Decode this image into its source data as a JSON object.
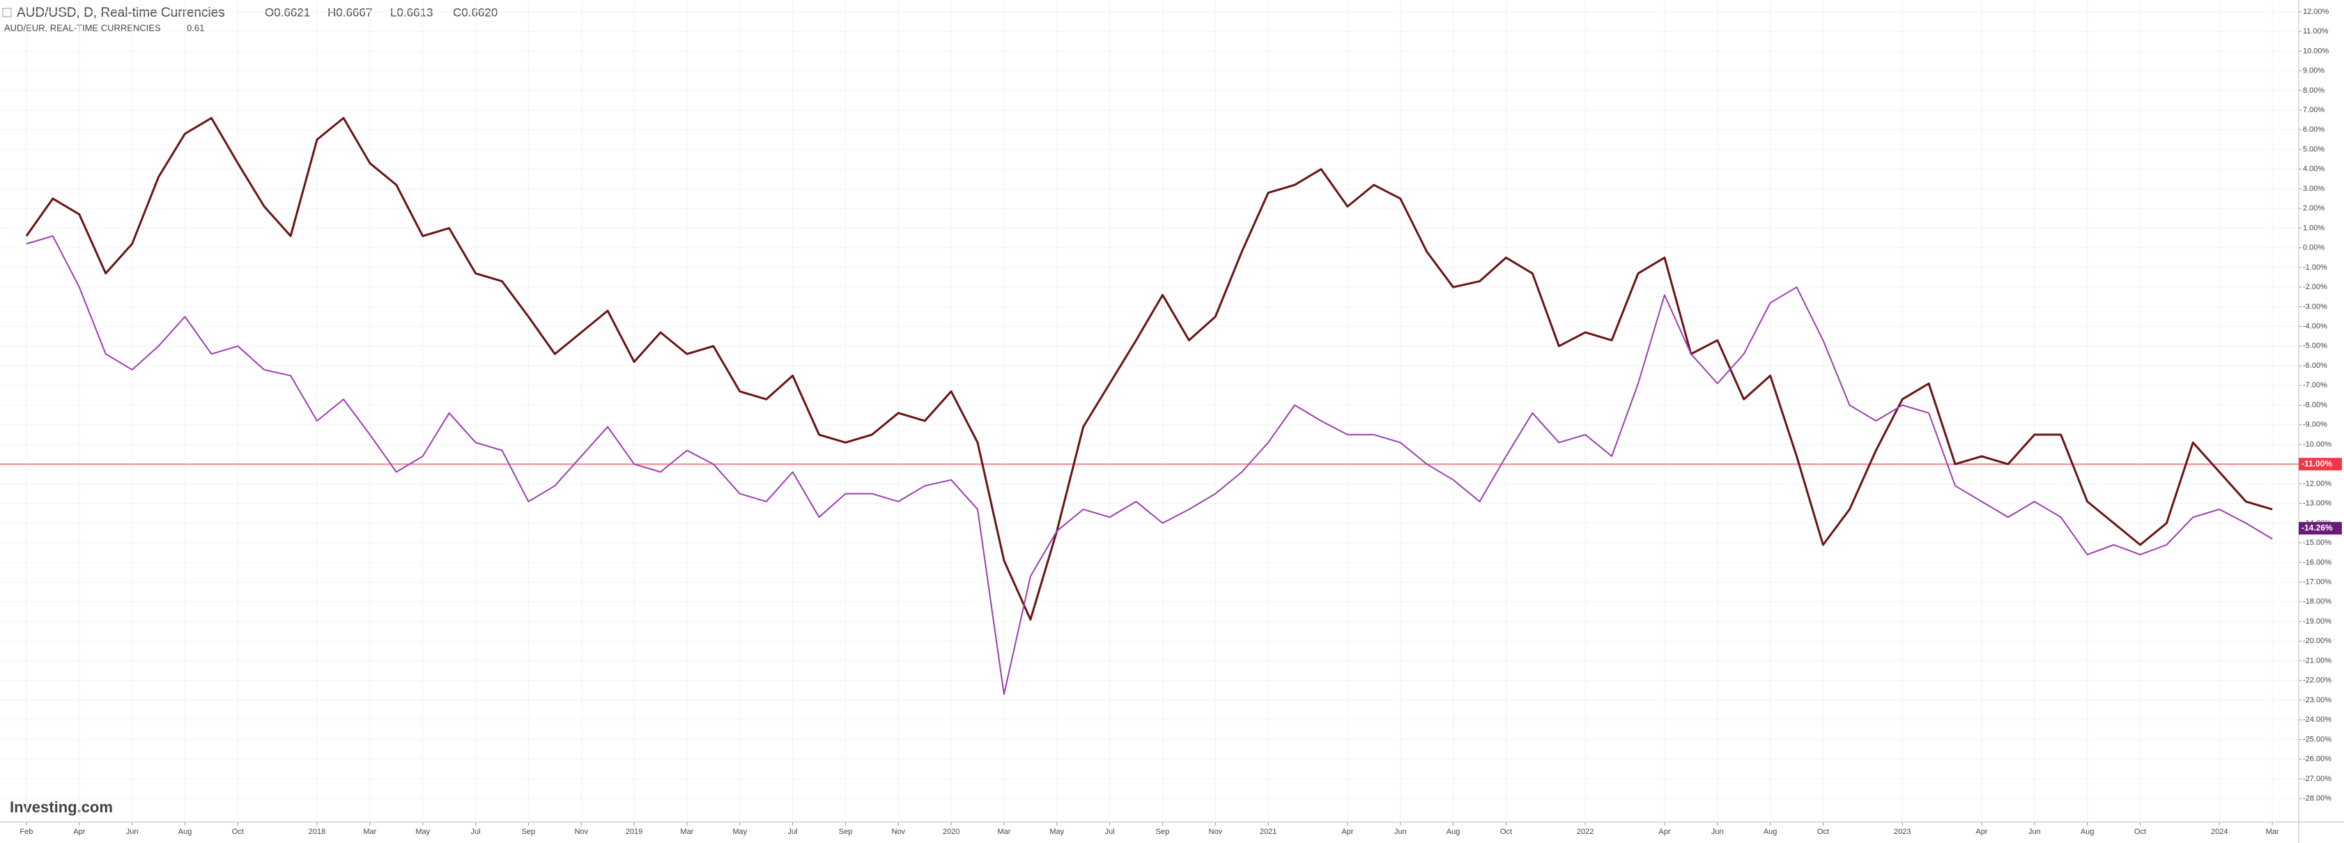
{
  "chart_data": {
    "type": "line",
    "title": "AUD/USD, D, Real-time Currencies",
    "ohlc": [
      "O0.6621",
      "H0.6667",
      "L0.6613",
      "C0.6620"
    ],
    "subtitle": "AUD/EUR, REAL-TIME CURRENCIES",
    "subtitle_value": "0.61",
    "logo": "Investing.com",
    "x": [
      "2017-02",
      "2017-03",
      "2017-04",
      "2017-05",
      "2017-06",
      "2017-07",
      "2017-08",
      "2017-09",
      "2017-10",
      "2017-11",
      "2017-12",
      "2018-01",
      "2018-02",
      "2018-03",
      "2018-04",
      "2018-05",
      "2018-06",
      "2018-07",
      "2018-08",
      "2018-09",
      "2018-10",
      "2018-11",
      "2018-12",
      "2019-01",
      "2019-02",
      "2019-03",
      "2019-04",
      "2019-05",
      "2019-06",
      "2019-07",
      "2019-08",
      "2019-09",
      "2019-10",
      "2019-11",
      "2019-12",
      "2020-01",
      "2020-02",
      "2020-03",
      "2020-04",
      "2020-05",
      "2020-06",
      "2020-07",
      "2020-08",
      "2020-09",
      "2020-10",
      "2020-11",
      "2020-12",
      "2021-01",
      "2021-02",
      "2021-03",
      "2021-04",
      "2021-05",
      "2021-06",
      "2021-07",
      "2021-08",
      "2021-09",
      "2021-10",
      "2021-11",
      "2021-12",
      "2022-01",
      "2022-02",
      "2022-03",
      "2022-04",
      "2022-05",
      "2022-06",
      "2022-07",
      "2022-08",
      "2022-09",
      "2022-10",
      "2022-11",
      "2022-12",
      "2023-01",
      "2023-02",
      "2023-03",
      "2023-04",
      "2023-05",
      "2023-06",
      "2023-07",
      "2023-08",
      "2023-09",
      "2023-10",
      "2023-11",
      "2023-12",
      "2024-01",
      "2024-02",
      "2024-03"
    ],
    "series": [
      {
        "name": "AUD/USD",
        "color": "#6b1414",
        "values": [
          0.6,
          2.5,
          1.7,
          -1.3,
          0.2,
          3.6,
          5.8,
          6.6,
          4.3,
          2.1,
          0.6,
          5.5,
          6.6,
          4.3,
          3.2,
          0.6,
          1.0,
          -1.3,
          -1.7,
          -3.5,
          -5.4,
          -4.3,
          -3.2,
          -5.8,
          -4.3,
          -5.4,
          -5.0,
          -7.3,
          -7.7,
          -6.5,
          -9.5,
          -9.9,
          -9.5,
          -8.4,
          -8.8,
          -7.3,
          -9.9,
          -15.9,
          -18.9,
          -14.4,
          -9.1,
          -6.9,
          -4.7,
          -2.4,
          -4.7,
          -3.5,
          -0.2,
          2.8,
          3.2,
          4.0,
          2.1,
          3.2,
          2.5,
          -0.2,
          -2.0,
          -1.7,
          -0.5,
          -1.3,
          -5.0,
          -4.3,
          -4.7,
          -1.3,
          -0.5,
          -5.4,
          -4.7,
          -7.7,
          -6.5,
          -10.6,
          -15.1,
          -13.3,
          -10.3,
          -7.7,
          -6.9,
          -11.0,
          -10.6,
          -11.0,
          -9.5,
          -9.5,
          -12.9,
          -14.0,
          -15.1,
          -14.0,
          -9.9,
          -11.4,
          -12.9,
          -13.3
        ]
      },
      {
        "name": "AUD/EUR",
        "color": "#9c3fb0",
        "values": [
          0.2,
          0.6,
          -2.0,
          -5.4,
          -6.2,
          -5.0,
          -3.5,
          -5.4,
          -5.0,
          -6.2,
          -6.5,
          -8.8,
          -7.7,
          -9.5,
          -11.4,
          -10.6,
          -8.4,
          -9.9,
          -10.3,
          -12.9,
          -12.1,
          -10.6,
          -9.1,
          -11.0,
          -11.4,
          -10.3,
          -11.0,
          -12.5,
          -12.9,
          -11.4,
          -13.7,
          -12.5,
          -12.5,
          -12.9,
          -12.1,
          -11.8,
          -13.3,
          -22.7,
          -16.7,
          -14.4,
          -13.3,
          -13.7,
          -12.9,
          -14.0,
          -13.3,
          -12.5,
          -11.4,
          -9.9,
          -8.0,
          -8.8,
          -9.5,
          -9.5,
          -9.9,
          -11.0,
          -11.8,
          -12.9,
          -10.6,
          -8.4,
          -9.9,
          -9.5,
          -10.6,
          -6.9,
          -2.4,
          -5.4,
          -6.9,
          -5.4,
          -2.8,
          -2.0,
          -4.7,
          -8.0,
          -8.8,
          -8.0,
          -8.4,
          -12.1,
          -12.9,
          -13.7,
          -12.9,
          -13.7,
          -15.6,
          -15.1,
          -15.6,
          -15.1,
          -13.7,
          -13.3,
          -14.0,
          -14.8
        ],
        "last_label": {
          "value": -14.26,
          "label": "-14.26%"
        }
      }
    ],
    "price_line": {
      "value": -11,
      "label": "-11.00%",
      "color": "#f23645"
    },
    "xlim": [
      "2017-01",
      "2024-04"
    ],
    "xticks": [
      {
        "value": "2017-02",
        "label": "Feb"
      },
      {
        "value": "2017-04",
        "label": "Apr"
      },
      {
        "value": "2017-06",
        "label": "Jun"
      },
      {
        "value": "2017-08",
        "label": "Aug"
      },
      {
        "value": "2017-10",
        "label": "Oct"
      },
      {
        "value": "2018-01",
        "label": "2018"
      },
      {
        "value": "2018-03",
        "label": "Mar"
      },
      {
        "value": "2018-05",
        "label": "May"
      },
      {
        "value": "2018-07",
        "label": "Jul"
      },
      {
        "value": "2018-09",
        "label": "Sep"
      },
      {
        "value": "2018-11",
        "label": "Nov"
      },
      {
        "value": "2019-01",
        "label": "2019"
      },
      {
        "value": "2019-03",
        "label": "Mar"
      },
      {
        "value": "2019-05",
        "label": "May"
      },
      {
        "value": "2019-07",
        "label": "Jul"
      },
      {
        "value": "2019-09",
        "label": "Sep"
      },
      {
        "value": "2019-11",
        "label": "Nov"
      },
      {
        "value": "2020-01",
        "label": "2020"
      },
      {
        "value": "2020-03",
        "label": "Mar"
      },
      {
        "value": "2020-05",
        "label": "May"
      },
      {
        "value": "2020-07",
        "label": "Jul"
      },
      {
        "value": "2020-09",
        "label": "Sep"
      },
      {
        "value": "2020-11",
        "label": "Nov"
      },
      {
        "value": "2021-01",
        "label": "2021"
      },
      {
        "value": "2021-04",
        "label": "Apr"
      },
      {
        "value": "2021-06",
        "label": "Jun"
      },
      {
        "value": "2021-08",
        "label": "Aug"
      },
      {
        "value": "2021-10",
        "label": "Oct"
      },
      {
        "value": "2022-01",
        "label": "2022"
      },
      {
        "value": "2022-04",
        "label": "Apr"
      },
      {
        "value": "2022-06",
        "label": "Jun"
      },
      {
        "value": "2022-08",
        "label": "Aug"
      },
      {
        "value": "2022-10",
        "label": "Oct"
      },
      {
        "value": "2023-01",
        "label": "2023"
      },
      {
        "value": "2023-04",
        "label": "Apr"
      },
      {
        "value": "2023-06",
        "label": "Jun"
      },
      {
        "value": "2023-08",
        "label": "Aug"
      },
      {
        "value": "2023-10",
        "label": "Oct"
      },
      {
        "value": "2024-01",
        "label": "2024"
      },
      {
        "value": "2024-03",
        "label": "Mar"
      }
    ],
    "ylim": [
      -29.2,
      12.6
    ],
    "yticks": [
      {
        "value": 12,
        "label": "12.00%"
      },
      {
        "value": 11,
        "label": "11.00%"
      },
      {
        "value": 10,
        "label": "10.00%"
      },
      {
        "value": 9,
        "label": "9.00%"
      },
      {
        "value": 8,
        "label": "8.00%"
      },
      {
        "value": 7,
        "label": "7.00%"
      },
      {
        "value": 6,
        "label": "6.00%"
      },
      {
        "value": 5,
        "label": "5.00%"
      },
      {
        "value": 4,
        "label": "4.00%"
      },
      {
        "value": 3,
        "label": "3.00%"
      },
      {
        "value": 2,
        "label": "2.00%"
      },
      {
        "value": 1,
        "label": "1.00%"
      },
      {
        "value": 0,
        "label": "0.00%"
      },
      {
        "value": -1,
        "label": "-1.00%"
      },
      {
        "value": -2,
        "label": "-2.00%"
      },
      {
        "value": -3,
        "label": "-3.00%"
      },
      {
        "value": -4,
        "label": "-4.00%"
      },
      {
        "value": -5,
        "label": "-5.00%"
      },
      {
        "value": -6,
        "label": "-6.00%"
      },
      {
        "value": -7,
        "label": "-7.00%"
      },
      {
        "value": -8,
        "label": "-8.00%"
      },
      {
        "value": -9,
        "label": "-9.00%"
      },
      {
        "value": -10,
        "label": "-10.00%"
      },
      {
        "value": -11,
        "label": "-11.00%"
      },
      {
        "value": -12,
        "label": "-12.00%"
      },
      {
        "value": -13,
        "label": "-13.00%"
      },
      {
        "value": -14,
        "label": "-14.00%"
      },
      {
        "value": -15,
        "label": "-15.00%"
      },
      {
        "value": -16,
        "label": "-16.00%"
      },
      {
        "value": -17,
        "label": "-17.00%"
      },
      {
        "value": -18,
        "label": "-18.00%"
      },
      {
        "value": -19,
        "label": "-19.00%"
      },
      {
        "value": -20,
        "label": "-20.00%"
      },
      {
        "value": -21,
        "label": "-21.00%"
      },
      {
        "value": -22,
        "label": "-22.00%"
      },
      {
        "value": -23,
        "label": "-23.00%"
      },
      {
        "value": -24,
        "label": "-24.00%"
      },
      {
        "value": -25,
        "label": "-25.00%"
      },
      {
        "value": -26,
        "label": "-26.00%"
      },
      {
        "value": -27,
        "label": "-27.00%"
      },
      {
        "value": -28,
        "label": "-28.00%"
      }
    ],
    "grid": true
  }
}
